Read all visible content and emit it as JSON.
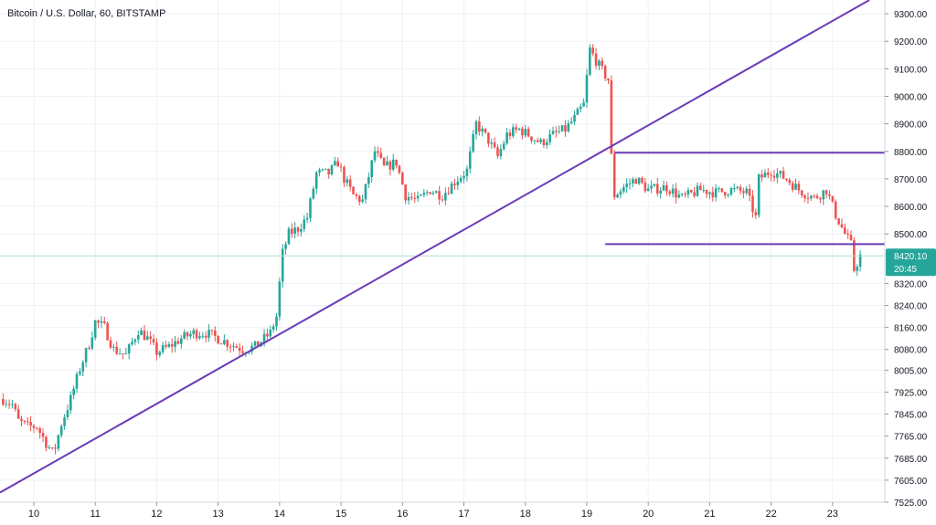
{
  "chart_data": {
    "type": "candlestick",
    "title": "Bitcoin / U.S. Dollar, 60, BITSTAMP",
    "x_tick_labels": [
      "10",
      "11",
      "12",
      "13",
      "14",
      "15",
      "16",
      "17",
      "18",
      "19",
      "20",
      "21",
      "22",
      "23"
    ],
    "y_tick_labels": [
      "7525.00",
      "7605.00",
      "7685.00",
      "7765.00",
      "7845.00",
      "7925.00",
      "8005.00",
      "8080.00",
      "8160.00",
      "8240.00",
      "8320.00",
      "8420.10",
      "8500.00",
      "8600.00",
      "8700.00",
      "8800.00",
      "8900.00",
      "9000.00",
      "9100.00",
      "9200.00",
      "9300.00"
    ],
    "ylim": [
      7525,
      9350
    ],
    "xlim": [
      9.45,
      23.85
    ],
    "last_price": "8420.10",
    "countdown": "20:45",
    "colors": {
      "up": "#26a69a",
      "down": "#ef5350",
      "trendline": "#6a3cb8",
      "price_line": "#b5dcd3",
      "grid": "#eef0f3",
      "axis_text": "#131722",
      "price_label_bg": "#26a69a"
    },
    "trendline": {
      "from": {
        "x": 9.45,
        "y": 7560
      },
      "to": {
        "x": 23.6,
        "y": 9350
      }
    },
    "horizontal_lines": [
      {
        "y": 8795,
        "x_from": 19.45,
        "x_to": 23.85
      },
      {
        "y": 8463,
        "x_from": 19.3,
        "x_to": 23.85
      }
    ],
    "price_series": [
      {
        "x": 9.5,
        "y": 7900
      },
      {
        "x": 9.65,
        "y": 7880
      },
      {
        "x": 9.75,
        "y": 7820
      },
      {
        "x": 9.9,
        "y": 7800
      },
      {
        "x": 10.05,
        "y": 7800
      },
      {
        "x": 10.2,
        "y": 7740
      },
      {
        "x": 10.32,
        "y": 7700
      },
      {
        "x": 10.45,
        "y": 7810
      },
      {
        "x": 10.6,
        "y": 7900
      },
      {
        "x": 10.75,
        "y": 8010
      },
      {
        "x": 10.9,
        "y": 8100
      },
      {
        "x": 11.0,
        "y": 8180
      },
      {
        "x": 11.15,
        "y": 8160
      },
      {
        "x": 11.3,
        "y": 8080
      },
      {
        "x": 11.5,
        "y": 8060
      },
      {
        "x": 11.7,
        "y": 8150
      },
      {
        "x": 11.85,
        "y": 8120
      },
      {
        "x": 12.0,
        "y": 8070
      },
      {
        "x": 12.2,
        "y": 8090
      },
      {
        "x": 12.4,
        "y": 8120
      },
      {
        "x": 12.6,
        "y": 8140
      },
      {
        "x": 12.8,
        "y": 8140
      },
      {
        "x": 13.0,
        "y": 8120
      },
      {
        "x": 13.2,
        "y": 8100
      },
      {
        "x": 13.4,
        "y": 8080
      },
      {
        "x": 13.6,
        "y": 8090
      },
      {
        "x": 13.85,
        "y": 8140
      },
      {
        "x": 13.95,
        "y": 8200
      },
      {
        "x": 14.0,
        "y": 8320
      },
      {
        "x": 14.05,
        "y": 8430
      },
      {
        "x": 14.15,
        "y": 8500
      },
      {
        "x": 14.3,
        "y": 8520
      },
      {
        "x": 14.45,
        "y": 8560
      },
      {
        "x": 14.6,
        "y": 8720
      },
      {
        "x": 14.8,
        "y": 8720
      },
      {
        "x": 14.95,
        "y": 8760
      },
      {
        "x": 15.05,
        "y": 8700
      },
      {
        "x": 15.2,
        "y": 8640
      },
      {
        "x": 15.35,
        "y": 8620
      },
      {
        "x": 15.55,
        "y": 8800
      },
      {
        "x": 15.7,
        "y": 8740
      },
      {
        "x": 15.9,
        "y": 8760
      },
      {
        "x": 16.05,
        "y": 8640
      },
      {
        "x": 16.25,
        "y": 8620
      },
      {
        "x": 16.45,
        "y": 8660
      },
      {
        "x": 16.65,
        "y": 8640
      },
      {
        "x": 16.85,
        "y": 8690
      },
      {
        "x": 17.05,
        "y": 8730
      },
      {
        "x": 17.2,
        "y": 8900
      },
      {
        "x": 17.4,
        "y": 8840
      },
      {
        "x": 17.55,
        "y": 8780
      },
      {
        "x": 17.7,
        "y": 8860
      },
      {
        "x": 17.9,
        "y": 8880
      },
      {
        "x": 18.05,
        "y": 8860
      },
      {
        "x": 18.25,
        "y": 8830
      },
      {
        "x": 18.45,
        "y": 8860
      },
      {
        "x": 18.65,
        "y": 8880
      },
      {
        "x": 18.8,
        "y": 8920
      },
      {
        "x": 18.95,
        "y": 8970
      },
      {
        "x": 19.05,
        "y": 9170
      },
      {
        "x": 19.2,
        "y": 9110
      },
      {
        "x": 19.35,
        "y": 9060
      },
      {
        "x": 19.4,
        "y": 8780
      },
      {
        "x": 19.45,
        "y": 8640
      },
      {
        "x": 19.6,
        "y": 8670
      },
      {
        "x": 19.8,
        "y": 8700
      },
      {
        "x": 20.0,
        "y": 8660
      },
      {
        "x": 20.3,
        "y": 8670
      },
      {
        "x": 20.55,
        "y": 8630
      },
      {
        "x": 20.85,
        "y": 8660
      },
      {
        "x": 21.1,
        "y": 8650
      },
      {
        "x": 21.35,
        "y": 8660
      },
      {
        "x": 21.6,
        "y": 8650
      },
      {
        "x": 21.75,
        "y": 8560
      },
      {
        "x": 21.8,
        "y": 8700
      },
      {
        "x": 22.0,
        "y": 8730
      },
      {
        "x": 22.25,
        "y": 8700
      },
      {
        "x": 22.45,
        "y": 8660
      },
      {
        "x": 22.7,
        "y": 8630
      },
      {
        "x": 22.9,
        "y": 8660
      },
      {
        "x": 23.05,
        "y": 8570
      },
      {
        "x": 23.2,
        "y": 8500
      },
      {
        "x": 23.3,
        "y": 8460
      },
      {
        "x": 23.35,
        "y": 8370
      },
      {
        "x": 23.45,
        "y": 8420
      }
    ]
  }
}
